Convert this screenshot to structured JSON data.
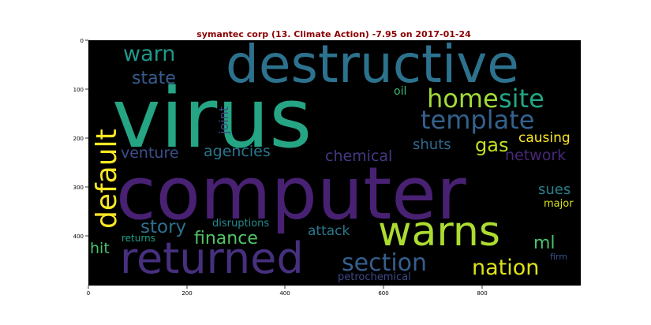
{
  "chart_data": {
    "type": "wordcloud",
    "title": "symantec corp (13. Climate Action) -7.95 on 2017-01-24",
    "background": "#000000",
    "xlim": [
      0,
      1000
    ],
    "ylim": [
      500,
      0
    ],
    "x_ticks": [
      "0",
      "200",
      "400",
      "600",
      "800"
    ],
    "y_ticks": [
      "0",
      "100",
      "200",
      "300",
      "400"
    ],
    "words": [
      {
        "text": "computer",
        "color": "#482173"
      },
      {
        "text": "virus",
        "color": "#25a584"
      },
      {
        "text": "destructive",
        "color": "#2c728e"
      },
      {
        "text": "returned",
        "color": "#46307e"
      },
      {
        "text": "warns",
        "color": "#addc30"
      },
      {
        "text": "template",
        "color": "#33628d"
      },
      {
        "text": "section",
        "color": "#355f8d"
      },
      {
        "text": "home",
        "color": "#a2da37"
      },
      {
        "text": "site",
        "color": "#22a785"
      },
      {
        "text": "default",
        "color": "#fde725"
      },
      {
        "text": "nation",
        "color": "#dde318"
      },
      {
        "text": "warn",
        "color": "#1f988b"
      },
      {
        "text": "story",
        "color": "#2d708e"
      },
      {
        "text": "finance",
        "color": "#52c569"
      },
      {
        "text": "gas",
        "color": "#c0df25"
      },
      {
        "text": "state",
        "color": "#365c8d"
      },
      {
        "text": "venture",
        "color": "#3d4e8a"
      },
      {
        "text": "agencies",
        "color": "#2a768e"
      },
      {
        "text": "chemical",
        "color": "#443983"
      },
      {
        "text": "network",
        "color": "#482878"
      },
      {
        "text": "shuts",
        "color": "#31688e"
      },
      {
        "text": "causing",
        "color": "#fde725"
      },
      {
        "text": "attack",
        "color": "#2a788e"
      },
      {
        "text": "ml",
        "color": "#4ac16d"
      },
      {
        "text": "hit",
        "color": "#48c16e"
      },
      {
        "text": "sues",
        "color": "#277f8e"
      },
      {
        "text": "joint",
        "color": "#3e4a89"
      },
      {
        "text": "oil",
        "color": "#3aba76"
      },
      {
        "text": "major",
        "color": "#d8e219"
      },
      {
        "text": "disruptions",
        "color": "#238a8d"
      },
      {
        "text": "returns",
        "color": "#1fa187"
      },
      {
        "text": "firm",
        "color": "#3b528b"
      },
      {
        "text": "petrochemical",
        "color": "#3e4989"
      }
    ]
  }
}
